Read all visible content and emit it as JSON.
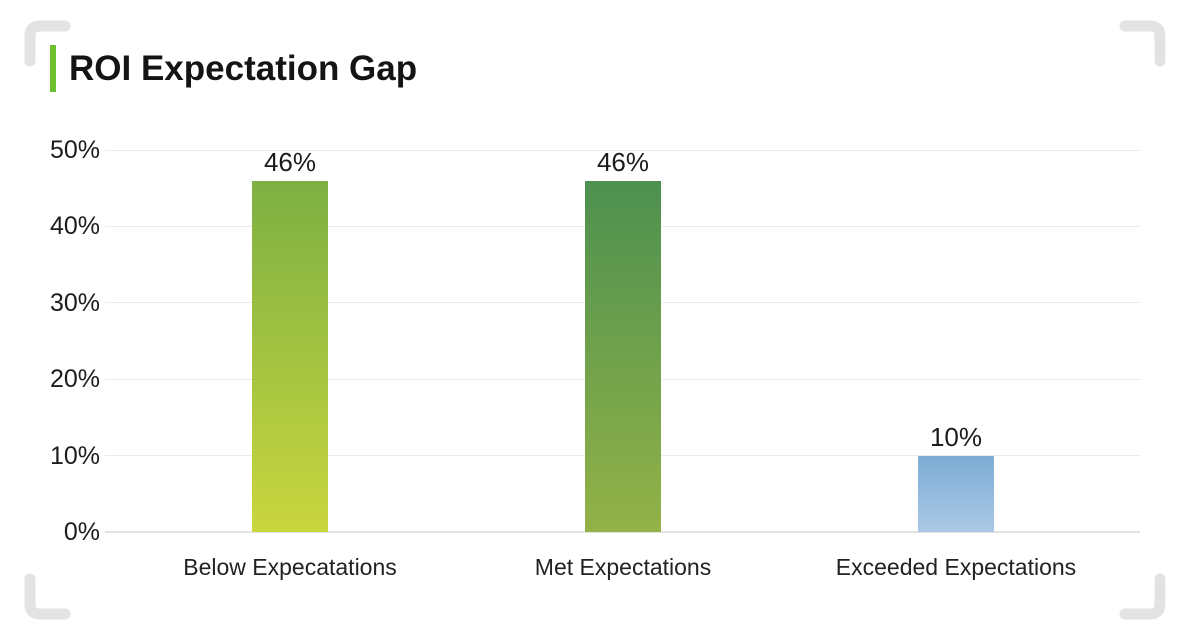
{
  "header": {
    "title": "ROI Expectation Gap",
    "accent_color": "#6cc02d"
  },
  "chart_data": {
    "type": "bar",
    "title": "ROI Expectation Gap",
    "categories": [
      "Below Expecatations",
      "Met Expectations",
      "Exceeded Expectations"
    ],
    "values": [
      46,
      46,
      10
    ],
    "value_labels": [
      "46%",
      "46%",
      "10%"
    ],
    "xlabel": "",
    "ylabel": "",
    "ylim": [
      0,
      50
    ],
    "ytick_step": 10,
    "yticks": [
      "0%",
      "10%",
      "20%",
      "30%",
      "40%",
      "50%"
    ],
    "grid": true,
    "legend": "none",
    "bar_gradients": [
      {
        "top": "#7db043",
        "bottom": "#c9d63e"
      },
      {
        "top": "#4d9050",
        "bottom": "#93b247"
      },
      {
        "top": "#7dacd4",
        "bottom": "#abc9e7"
      }
    ],
    "gridline_color": "#ebebeb",
    "baseline_color": "#e3e3e3",
    "text_color": "#1c1c1c"
  },
  "decor": {
    "bracket_color": "#e3e3e3"
  }
}
